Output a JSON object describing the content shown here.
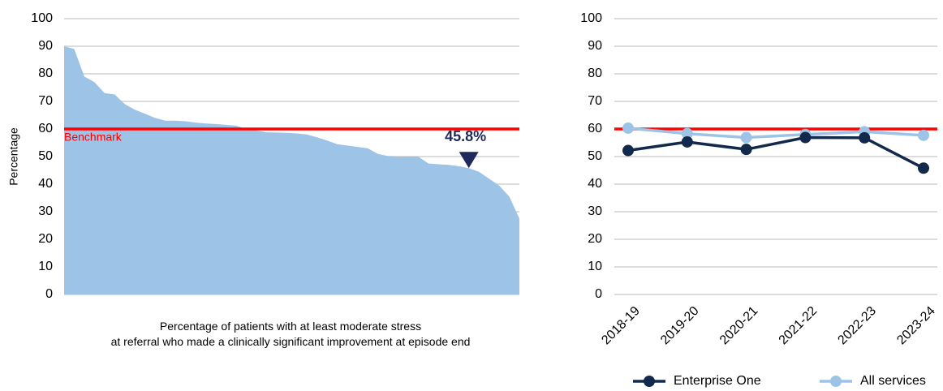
{
  "chart_data": [
    {
      "type": "area",
      "x_label": "Percentage of patients with at least moderate stress at referral who made a clinically significant improvement at episode end",
      "y_label": "Percentage",
      "values": [
        90,
        89,
        79,
        77,
        73,
        72.5,
        69,
        67,
        65.5,
        64,
        63,
        63,
        62.8,
        62.3,
        62,
        61.8,
        61.5,
        61.2,
        60,
        59.5,
        58.8,
        58.7,
        58.6,
        58.4,
        58,
        57,
        55.8,
        54.5,
        54,
        53.5,
        53,
        51,
        50.2,
        50,
        50,
        50,
        47.5,
        47.2,
        47,
        46.5,
        45.8,
        44.5,
        42,
        39.5,
        35.5,
        27.5
      ],
      "color": "#9dc3e6",
      "highlight": {
        "value": 45.8,
        "label": "45.8%",
        "color": "#1f2a5c"
      },
      "benchmark": {
        "value": 60,
        "label": "Benchmark",
        "color": "#ff0000"
      },
      "ylim": [
        0,
        100
      ],
      "yticks": [
        0,
        10,
        20,
        30,
        40,
        50,
        60,
        70,
        80,
        90,
        100
      ],
      "grid": true
    },
    {
      "type": "line",
      "categories": [
        "2018-19",
        "2019-20",
        "2020-21",
        "2021-22",
        "2022-23",
        "2023-24"
      ],
      "series": [
        {
          "name": "Enterprise One",
          "color": "#13294b",
          "values": [
            52.2,
            55.3,
            52.6,
            56.9,
            56.8,
            45.8
          ]
        },
        {
          "name": "All services",
          "color": "#9dc3e6",
          "values": [
            60.3,
            58.3,
            56.9,
            58.0,
            59.0,
            57.7
          ]
        }
      ],
      "benchmark": {
        "value": 60,
        "color": "#ff0000"
      },
      "ylim": [
        0,
        100
      ],
      "yticks": [
        0,
        10,
        20,
        30,
        40,
        50,
        60,
        70,
        80,
        90,
        100
      ],
      "grid": true,
      "legend": "bottom"
    }
  ]
}
